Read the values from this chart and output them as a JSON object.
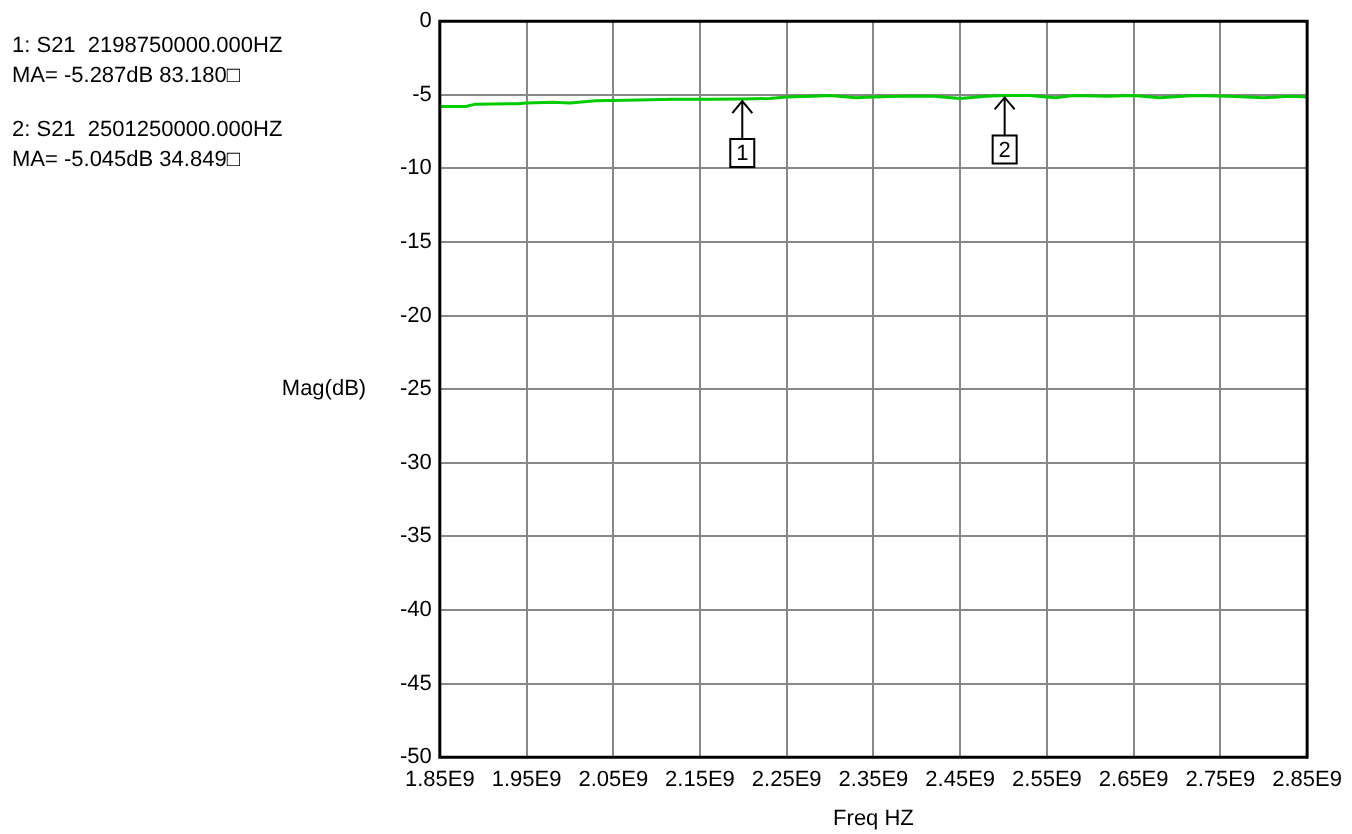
{
  "chart_data": {
    "type": "line",
    "xlabel": "Freq HZ",
    "ylabel": "Mag(dB)",
    "x": [
      1850000000,
      1880000000,
      1890000000,
      1940000000,
      1950000000,
      1980000000,
      2000000000,
      2030000000,
      2080000000,
      2120000000,
      2160000000,
      2198750000,
      2230000000,
      2250000000,
      2280000000,
      2300000000,
      2330000000,
      2350000000,
      2380000000,
      2420000000,
      2450000000,
      2480000000,
      2501250000,
      2530000000,
      2560000000,
      2580000000,
      2620000000,
      2650000000,
      2680000000,
      2720000000,
      2760000000,
      2800000000,
      2830000000,
      2850000000
    ],
    "series": [
      {
        "color": "#00cc00",
        "values": [
          -5.8,
          -5.8,
          -5.65,
          -5.6,
          -5.55,
          -5.5,
          -5.55,
          -5.4,
          -5.35,
          -5.3,
          -5.3,
          -5.287,
          -5.25,
          -5.15,
          -5.1,
          -5.05,
          -5.2,
          -5.15,
          -5.1,
          -5.1,
          -5.25,
          -5.1,
          -5.045,
          -5.05,
          -5.2,
          -5.05,
          -5.1,
          -5.05,
          -5.2,
          -5.05,
          -5.1,
          -5.2,
          -5.1,
          -5.15
        ]
      }
    ],
    "xlim": [
      1850000000,
      2850000000
    ],
    "xticks": [
      {
        "value": 1850000000,
        "label": "1.85E9"
      },
      {
        "value": 1950000000,
        "label": "1.95E9"
      },
      {
        "value": 2050000000,
        "label": "2.05E9"
      },
      {
        "value": 2150000000,
        "label": "2.15E9"
      },
      {
        "value": 2250000000,
        "label": "2.25E9"
      },
      {
        "value": 2350000000,
        "label": "2.35E9"
      },
      {
        "value": 2450000000,
        "label": "2.45E9"
      },
      {
        "value": 2550000000,
        "label": "2.55E9"
      },
      {
        "value": 2650000000,
        "label": "2.65E9"
      },
      {
        "value": 2750000000,
        "label": "2.75E9"
      },
      {
        "value": 2850000000,
        "label": "2.85E9"
      }
    ],
    "ylim": [
      -50,
      0
    ],
    "yticks": [
      -50,
      -45,
      -40,
      -35,
      -30,
      -25,
      -20,
      -15,
      -10,
      -5,
      0
    ],
    "grid": true,
    "legend": false,
    "marker": "none",
    "line_style": "solid",
    "annotations": [
      "1: S21  2198750000.000HZ",
      "MA= -5.287dB 83.180□",
      "2: S21  2501250000.000HZ",
      "MA= -5.045dB 34.849□",
      {
        "text": "1",
        "x": 2198750000,
        "y": -5.287
      },
      {
        "text": "2",
        "x": 2501250000,
        "y": -5.045
      }
    ]
  }
}
